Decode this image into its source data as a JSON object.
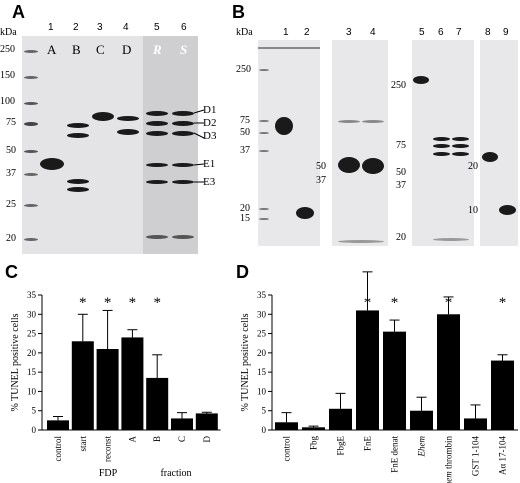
{
  "panels": {
    "a": "A",
    "b": "B",
    "c": "C",
    "d": "D"
  },
  "gel_a": {
    "kda_label": "kDa",
    "markers": [
      "250",
      "150",
      "100",
      "75",
      "50",
      "37",
      "25",
      "20"
    ],
    "lane_numbers": [
      "1",
      "2",
      "3",
      "4",
      "5",
      "6"
    ],
    "lane_letters": [
      "A",
      "B",
      "C",
      "D",
      "R",
      "S"
    ],
    "band_labels": [
      "D1",
      "D2",
      "D3",
      "E1",
      "E3"
    ]
  },
  "gel_b": {
    "kda_label": "kDa",
    "markers_left": [
      "250",
      "75",
      "50",
      "37",
      "20",
      "15"
    ],
    "markers_mid": [
      "50",
      "37"
    ],
    "markers_right": [
      "250",
      "75",
      "50",
      "37",
      "20"
    ],
    "markers_far": [
      "20",
      "10"
    ],
    "lane_numbers": [
      "1",
      "2",
      "3",
      "4",
      "5",
      "6",
      "7",
      "8",
      "9"
    ]
  },
  "chart_data": [
    {
      "type": "bar",
      "panel": "C",
      "ylabel": "% TUNEL positive cells",
      "ylim": [
        0,
        35
      ],
      "yticks": [
        "0",
        "5",
        "10",
        "15",
        "20",
        "25",
        "30",
        "35"
      ],
      "categories": [
        "control",
        "start",
        "reconst",
        "A",
        "B",
        "C",
        "D"
      ],
      "values": [
        2.5,
        23,
        21,
        24,
        13.5,
        3,
        4.3
      ],
      "errors": [
        1,
        7,
        10,
        2,
        6,
        1.5,
        0.3
      ],
      "significant": [
        false,
        true,
        true,
        true,
        true,
        false,
        false
      ],
      "group_labels": [
        "FDP",
        "fraction"
      ],
      "star": "*"
    },
    {
      "type": "bar",
      "panel": "D",
      "ylabel": "% TUNEL positive cells",
      "ylim": [
        0,
        35
      ],
      "yticks": [
        "0",
        "5",
        "10",
        "15",
        "20",
        "25",
        "30",
        "35"
      ],
      "categories": [
        "control",
        "Fbg",
        "FbgE",
        "FnE",
        "FnE denat",
        "Ehem",
        "Ehem thrombin",
        "GST 1-104",
        "Aα 17-104"
      ],
      "values": [
        2,
        0.7,
        5.5,
        31,
        25.5,
        5,
        30,
        3,
        18
      ],
      "errors": [
        2.5,
        0.3,
        4,
        10,
        3,
        3.5,
        4.5,
        3.5,
        1.5
      ],
      "significant": [
        false,
        false,
        false,
        true,
        true,
        false,
        true,
        false,
        true
      ],
      "star": "*"
    }
  ]
}
